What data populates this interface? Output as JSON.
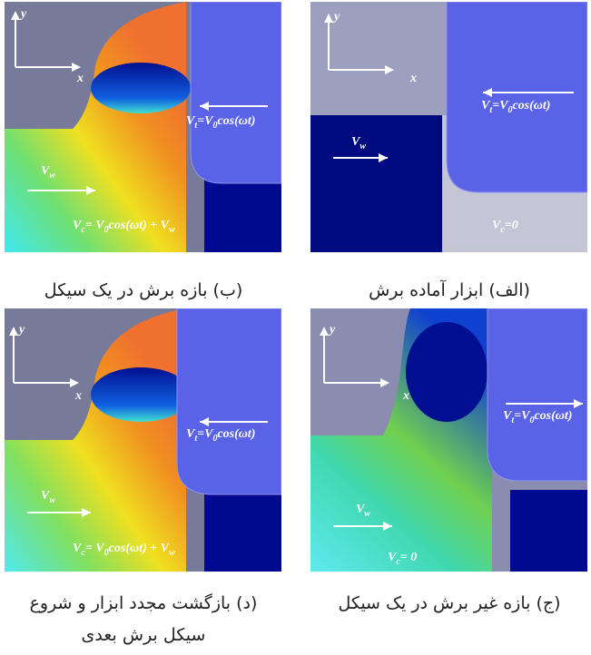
{
  "panels": [
    {
      "caption": "(الف) ابزار آماده برش",
      "y": "y",
      "x": "x",
      "vt": [
        {
          "t": "V"
        },
        {
          "s": "t"
        },
        {
          "t": "=V"
        },
        {
          "s": "0"
        },
        {
          "t": "cos(ωt)"
        }
      ],
      "vw": [
        {
          "t": "V"
        },
        {
          "s": "w"
        }
      ],
      "vc": [
        {
          "t": "V"
        },
        {
          "s": "c"
        },
        {
          "t": "=0"
        }
      ]
    },
    {
      "caption": "(ب) بازه برش در یک سیکل",
      "y": "y",
      "x": "x",
      "vt": [
        {
          "t": "V"
        },
        {
          "s": "t"
        },
        {
          "t": "=V"
        },
        {
          "s": "0"
        },
        {
          "t": "cos(ωt)"
        }
      ],
      "vw": [
        {
          "t": "V"
        },
        {
          "s": "w"
        }
      ],
      "vc": [
        {
          "t": "V"
        },
        {
          "s": "c"
        },
        {
          "t": "= V"
        },
        {
          "s": "0"
        },
        {
          "t": "cos(ωt) + V"
        },
        {
          "s": "w"
        }
      ]
    },
    {
      "caption": "(ج) بازه غیر برش در یک سیکل",
      "y": "y",
      "x": "x",
      "vt": [
        {
          "t": "V"
        },
        {
          "s": "t"
        },
        {
          "t": "=V"
        },
        {
          "s": "0"
        },
        {
          "t": "cos(ωt)"
        }
      ],
      "vw": [
        {
          "t": "V"
        },
        {
          "s": "w"
        }
      ],
      "vc": [
        {
          "t": "V"
        },
        {
          "s": "c"
        },
        {
          "t": "= 0"
        }
      ]
    },
    {
      "caption": "(د) بازگشت مجدد ابزار و شروع سیکل برش بعدی",
      "y": "y",
      "x": "x",
      "vt": [
        {
          "t": "V"
        },
        {
          "s": "t"
        },
        {
          "t": "=V"
        },
        {
          "s": "0"
        },
        {
          "t": "cos(ωt)"
        }
      ],
      "vw": [
        {
          "t": "V"
        },
        {
          "s": "w"
        }
      ],
      "vc": [
        {
          "t": "V"
        },
        {
          "s": "c"
        },
        {
          "t": "= V"
        },
        {
          "s": "0"
        },
        {
          "t": "cos(ωt) + V"
        },
        {
          "s": "w"
        }
      ]
    }
  ]
}
